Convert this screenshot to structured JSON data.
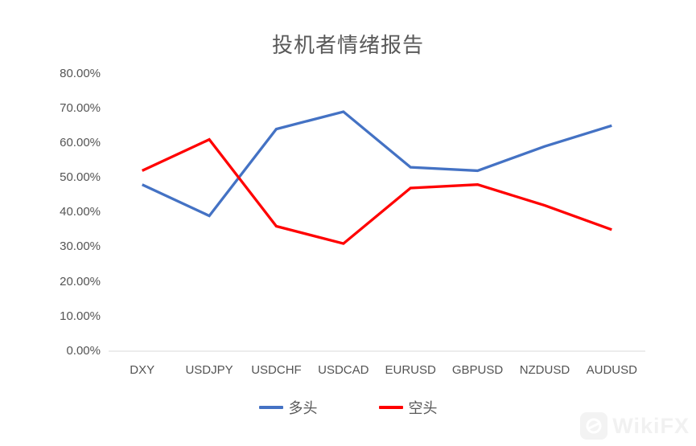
{
  "chart_data": {
    "type": "line",
    "title": "投机者情绪报告",
    "categories": [
      "DXY",
      "USDJPY",
      "USDCHF",
      "USDCAD",
      "EURUSD",
      "GBPUSD",
      "NZDUSD",
      "AUDUSD"
    ],
    "series": [
      {
        "name": "多头",
        "color": "#4472C4",
        "values": [
          48,
          39,
          64,
          69,
          53,
          52,
          59,
          65
        ]
      },
      {
        "name": "空头",
        "color": "#FF0000",
        "values": [
          52,
          61,
          36,
          31,
          47,
          48,
          42,
          35
        ]
      }
    ],
    "y_ticks": [
      {
        "value": 80,
        "label": "80.00%"
      },
      {
        "value": 70,
        "label": "70.00%"
      },
      {
        "value": 60,
        "label": "60.00%"
      },
      {
        "value": 50,
        "label": "50.00%"
      },
      {
        "value": 40,
        "label": "40.00%"
      },
      {
        "value": 30,
        "label": "30.00%"
      },
      {
        "value": 20,
        "label": "20.00%"
      },
      {
        "value": 10,
        "label": "10.00%"
      },
      {
        "value": 0,
        "label": "0.00%"
      }
    ],
    "ylim": [
      0,
      80
    ],
    "grid": false,
    "legend_position": "bottom",
    "axis_color": "#D9D9D9",
    "label_color": "#595959"
  },
  "watermark": {
    "label": "WikiFX"
  }
}
